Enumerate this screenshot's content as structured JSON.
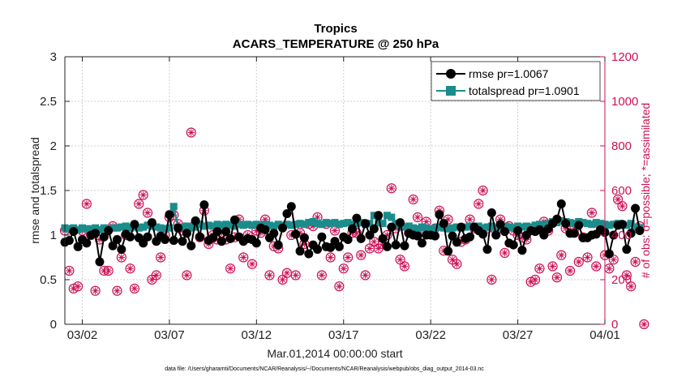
{
  "chart_data": {
    "type": "line",
    "title": "Tropics",
    "subtitle": "ACARS_TEMPERATURE @ 250 hPa",
    "xlabel": "Mar.01,2014 00:00:00 start",
    "ylabel": "rmse and totalspread",
    "y2label": "# of obs: o=possible; *=assimilated",
    "footnote": "data file: /Users/gharamti/Documents/NCAR/Reanalysis/~/Documents/NCAR/Reanalysis/webpub/obs_diag_output_2014-03.nc",
    "xlim": [
      0,
      124
    ],
    "ylim": [
      0,
      3
    ],
    "y2lim": [
      0,
      1200
    ],
    "yticks": [
      "0",
      "0.5",
      "1",
      "1.5",
      "2",
      "2.5",
      "3"
    ],
    "y2ticks": [
      "0",
      "200",
      "400",
      "600",
      "800",
      "1000",
      "1200"
    ],
    "xtick_labels": [
      "03/02",
      "03/07",
      "03/12",
      "03/17",
      "03/22",
      "03/27",
      "04/01"
    ],
    "colors": {
      "rmse": "#000000",
      "totalspread": "#1b8c8c",
      "obs": "#cc1155"
    },
    "series": [
      {
        "name": "rmse",
        "legend": "rmse pr=1.0067",
        "values": [
          0.92,
          0.94,
          1.04,
          0.87,
          0.95,
          0.91,
          1.0,
          1.02,
          0.7,
          0.98,
          1.05,
          0.88,
          0.95,
          0.84,
          1.01,
          0.98,
          1.12,
          0.97,
          0.91,
          0.98,
          1.14,
          0.93,
          0.99,
          0.95,
          1.23,
          0.94,
          1.08,
          0.93,
          1.02,
          0.88,
          1.16,
          0.98,
          1.34,
          0.94,
          0.97,
          1.04,
          0.93,
          1.04,
          0.96,
          1.17,
          0.98,
          0.93,
          0.96,
          0.95,
          0.91,
          1.08,
          1.06,
          0.97,
          1.02,
          0.89,
          1.08,
          1.24,
          1.32,
          1.01,
          0.82,
          0.97,
          0.79,
          0.89,
          0.84,
          0.98,
          0.87,
          0.86,
          0.93,
          0.87,
          0.98,
          0.95,
          1.07,
          1.19,
          0.96,
          1.13,
          1.0,
          1.07,
          1.22,
          0.96,
          0.87,
          1.09,
          0.89,
          1.14,
          0.88,
          1.02,
          1.0,
          0.99,
          0.91,
          1.0,
          1.0,
          0.99,
          1.23,
          1.13,
          0.82,
          0.99,
          0.92,
          1.09,
          0.96,
          0.98,
          1.09,
          1.05,
          1.01,
          0.84,
          1.25,
          1.0,
          1.12,
          1.04,
          0.91,
          0.89,
          1.05,
          0.83,
          1.0,
          1.05,
          1.04,
          1.06,
          1.0,
          1.07,
          1.13,
          1.18,
          1.35,
          1.13,
          1.02,
          1.02,
          1.11,
          0.97,
          0.97,
          1.0,
          1.01,
          1.06,
          1.03,
          0.79,
          1.0,
          1.11,
          1.12,
          0.84,
          1.02,
          1.3,
          1.05
        ]
      },
      {
        "name": "totalspread",
        "legend": "totalspread pr=1.0901",
        "values": [
          1.08,
          1.07,
          1.08,
          1.06,
          1.08,
          1.07,
          1.07,
          1.08,
          1.06,
          1.08,
          1.07,
          1.08,
          1.08,
          1.09,
          1.1,
          1.08,
          1.09,
          1.08,
          1.09,
          1.11,
          1.1,
          1.09,
          1.08,
          1.07,
          1.08,
          1.32,
          1.08,
          1.09,
          1.1,
          1.08,
          1.09,
          1.12,
          1.1,
          1.11,
          1.1,
          1.12,
          1.11,
          1.12,
          1.11,
          1.1,
          1.12,
          1.11,
          1.12,
          1.11,
          1.12,
          1.11,
          1.12,
          1.11,
          1.1,
          1.12,
          1.11,
          1.12,
          1.11,
          1.12,
          1.13,
          1.12,
          1.14,
          1.15,
          1.13,
          1.12,
          1.14,
          1.13,
          1.14,
          1.12,
          1.13,
          1.14,
          1.12,
          1.13,
          1.14,
          1.12,
          1.13,
          1.22,
          1.14,
          1.13,
          1.22,
          1.2,
          1.13,
          1.1,
          1.09,
          1.1,
          1.08,
          1.07,
          1.09,
          1.08,
          1.07,
          1.08,
          1.09,
          1.08,
          1.07,
          1.08,
          1.09,
          1.08,
          1.09,
          1.1,
          1.09,
          1.1,
          1.08,
          1.09,
          1.1,
          1.08,
          1.09,
          1.1,
          1.09,
          1.08,
          1.1,
          1.09,
          1.1,
          1.09,
          1.11,
          1.12,
          1.11,
          1.13,
          1.15,
          1.14,
          1.16,
          1.15,
          1.14,
          1.13,
          1.15,
          1.14,
          1.13,
          1.12,
          1.14,
          1.13,
          1.12,
          1.11,
          1.12,
          1.13,
          1.12,
          1.11,
          1.13,
          1.09,
          1.08
        ]
      },
      {
        "name": "obs_possible",
        "axis": "right",
        "values": [
          420,
          240,
          160,
          170,
          420,
          540,
          400,
          150,
          380,
          240,
          240,
          440,
          150,
          300,
          400,
          250,
          160,
          540,
          580,
          500,
          200,
          220,
          300,
          400,
          480,
          490,
          450,
          420,
          220,
          860,
          450,
          390,
          510,
          360,
          400,
          380,
          410,
          380,
          250,
          390,
          470,
          300,
          400,
          270,
          420,
          410,
          470,
          220,
          350,
          340,
          200,
          230,
          400,
          220,
          410,
          360,
          450,
          440,
          480,
          220,
          450,
          300,
          420,
          170,
          250,
          300,
          410,
          410,
          310,
          220,
          340,
          370,
          340,
          360,
          400,
          610,
          430,
          290,
          260,
          410,
          560,
          480,
          430,
          460,
          420,
          430,
          510,
          330,
          470,
          290,
          270,
          370,
          380,
          470,
          430,
          540,
          600,
          430,
          200,
          420,
          470,
          320,
          440,
          420,
          400,
          390,
          380,
          190,
          200,
          250,
          460,
          420,
          260,
          210,
          310,
          430,
          240,
          430,
          280,
          390,
          300,
          500,
          260,
          440,
          310,
          250,
          290,
          560,
          530,
          220,
          170,
          280,
          440,
          0
        ]
      },
      {
        "name": "obs_assimilated",
        "axis": "right",
        "values": [
          420,
          240,
          160,
          170,
          420,
          540,
          400,
          150,
          380,
          240,
          240,
          440,
          150,
          300,
          400,
          250,
          160,
          540,
          580,
          500,
          200,
          220,
          300,
          400,
          480,
          490,
          450,
          420,
          220,
          860,
          450,
          390,
          510,
          360,
          400,
          380,
          410,
          380,
          250,
          390,
          470,
          300,
          400,
          270,
          420,
          410,
          470,
          220,
          350,
          340,
          200,
          230,
          400,
          220,
          410,
          360,
          450,
          440,
          480,
          220,
          450,
          300,
          420,
          170,
          250,
          300,
          410,
          410,
          310,
          220,
          340,
          370,
          340,
          360,
          400,
          610,
          430,
          290,
          260,
          410,
          560,
          480,
          430,
          460,
          420,
          430,
          510,
          330,
          470,
          290,
          270,
          370,
          380,
          470,
          430,
          540,
          600,
          430,
          200,
          420,
          470,
          320,
          440,
          420,
          400,
          390,
          380,
          190,
          200,
          250,
          460,
          420,
          260,
          210,
          310,
          430,
          240,
          430,
          280,
          390,
          300,
          500,
          260,
          440,
          310,
          250,
          290,
          560,
          530,
          220,
          170,
          280,
          440,
          0
        ]
      }
    ],
    "legend_position": "top-right"
  }
}
